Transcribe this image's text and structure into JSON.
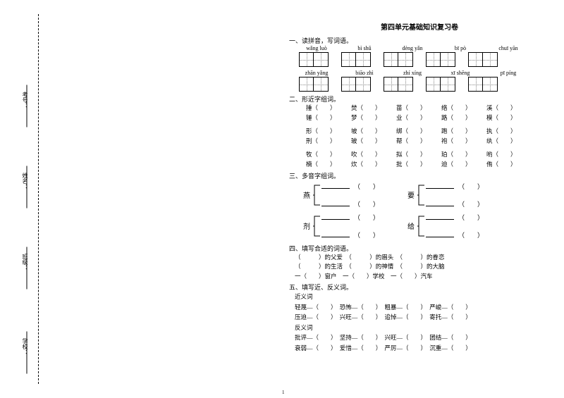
{
  "binding": {
    "labels": [
      "学校：",
      "班级：",
      "姓名：",
      "考号："
    ]
  },
  "title": "第四单元基础知识复习卷",
  "sec1": {
    "heading": "一、读拼音，写词语。",
    "row1": [
      "wǎng luò",
      "bì shǔ",
      "dèng yǎn",
      "bī pò",
      "chuī yān"
    ],
    "row2": [
      "zhān yǎng",
      "biāo zhì",
      "zhí xíng",
      "xī shēng",
      "pī píng"
    ]
  },
  "sec2": {
    "heading": "二、形近字组词。",
    "rows": [
      [
        "捶（",
        "焚（",
        "苗（",
        "络（",
        "溪（"
      ],
      [
        "锤（",
        "梦（",
        "业（",
        "路（",
        "模（"
      ],
      [
        "形（",
        "坡（",
        "绑（",
        "跑（",
        "执（"
      ],
      [
        "刑（",
        "玻（",
        "帮（",
        "袍（",
        "纨（"
      ],
      [
        "牧（",
        "吹（",
        "拟（",
        "珀（",
        "哟（"
      ],
      [
        "楠（",
        "炊（",
        "批（",
        "迫（",
        "侑（"
      ]
    ]
  },
  "sec3": {
    "heading": "三、多音字组词。",
    "chars": [
      "燕",
      "要",
      "剂",
      "给"
    ]
  },
  "sec4": {
    "heading": "四、填写合适的词语。",
    "lines": [
      "（　　　）的父爱　（　　　）的眉头　（　　　）的眷恋",
      "（　　　）的生活　（　　　）的神情　（　　　）的大脑",
      "一（　　）窗户　一（　　）学校　一（　　）汽车"
    ]
  },
  "sec5": {
    "heading": "五、填写近、反义词。",
    "sub1": "近义词",
    "syn": [
      "轻蔑—（　　）　恐怖—（　　）　粗暴—（　　）　严峻—（　　）",
      "压迫—（　　）　兴旺—（　　）　追悼—（　　）　寄托—（　　）"
    ],
    "sub2": "反义词",
    "ant": [
      "批评—（　　）　坚持—（　　）　兴旺—（　　）　团结—（　　）",
      "衰弱—（　　）　爱惜—（　　）　严厉—（　　）　沉重—（　　）"
    ]
  },
  "pagenum": "1"
}
